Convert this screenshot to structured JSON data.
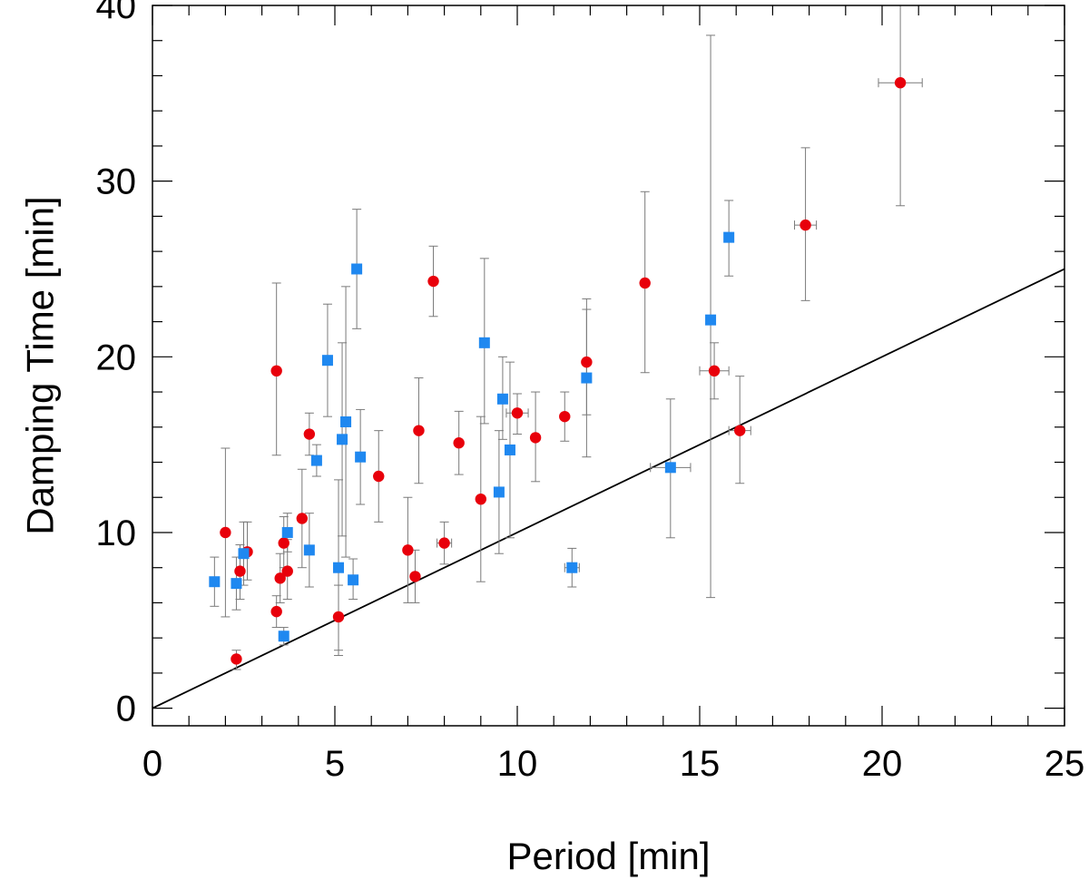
{
  "chart_data": {
    "type": "scatter",
    "title": "",
    "xlabel": "Period [min]",
    "ylabel": "Damping Time [min]",
    "xlim": [
      0,
      25
    ],
    "ylim": [
      -1,
      40
    ],
    "x_ticks": [
      0,
      5,
      10,
      15,
      20,
      25
    ],
    "x_tick_labels": [
      "0",
      "5",
      "10",
      "15",
      "20",
      "25"
    ],
    "y_ticks": [
      0,
      10,
      20,
      30,
      40
    ],
    "y_tick_labels": [
      "0",
      "10",
      "20",
      "30",
      "40"
    ],
    "x_minor_step": 1,
    "y_minor_step": 2,
    "grid": false,
    "reference_line": {
      "name": "y = x",
      "x": [
        0,
        25
      ],
      "y": [
        0,
        25
      ]
    },
    "series": [
      {
        "name": "red circles",
        "marker": "circle",
        "color": "#e8000b",
        "points": [
          {
            "x": 2.0,
            "y": 10.0,
            "ylo": 5.2,
            "yhi": 14.8
          },
          {
            "x": 2.3,
            "y": 2.8,
            "ylo": 2.2,
            "yhi": 3.3
          },
          {
            "x": 2.4,
            "y": 7.8,
            "ylo": 6.2,
            "yhi": 9.3
          },
          {
            "x": 2.6,
            "y": 8.9,
            "ylo": 7.3,
            "yhi": 10.6
          },
          {
            "x": 3.4,
            "y": 19.2,
            "ylo": 14.4,
            "yhi": 24.2
          },
          {
            "x": 3.4,
            "y": 5.5,
            "ylo": 4.6,
            "yhi": 6.4
          },
          {
            "x": 3.5,
            "y": 7.4,
            "ylo": 6.0,
            "yhi": 8.8
          },
          {
            "x": 3.6,
            "y": 9.4,
            "ylo": 8.0,
            "yhi": 10.9
          },
          {
            "x": 3.7,
            "y": 7.8,
            "ylo": 6.2,
            "yhi": 9.6
          },
          {
            "x": 4.1,
            "y": 10.8,
            "ylo": 8.0,
            "yhi": 13.6
          },
          {
            "x": 4.3,
            "y": 15.6,
            "ylo": 14.4,
            "yhi": 16.8
          },
          {
            "x": 5.1,
            "y": 5.2,
            "ylo": 3.3,
            "yhi": 7.0
          },
          {
            "x": 6.2,
            "y": 13.2,
            "ylo": 10.6,
            "yhi": 15.8
          },
          {
            "x": 7.0,
            "y": 9.0,
            "ylo": 6.0,
            "yhi": 12.0
          },
          {
            "x": 7.2,
            "y": 7.5,
            "ylo": 6.0,
            "yhi": 9.0
          },
          {
            "x": 7.3,
            "y": 15.8,
            "ylo": 12.8,
            "yhi": 18.8
          },
          {
            "x": 7.7,
            "y": 24.3,
            "ylo": 22.3,
            "yhi": 26.3
          },
          {
            "x": 8.0,
            "y": 9.4,
            "ylo": 8.2,
            "yhi": 10.6,
            "xerr": 0.2
          },
          {
            "x": 8.4,
            "y": 15.1,
            "ylo": 13.3,
            "yhi": 16.9
          },
          {
            "x": 9.0,
            "y": 11.9,
            "ylo": 7.2,
            "yhi": 16.6
          },
          {
            "x": 10.0,
            "y": 16.8,
            "ylo": 15.6,
            "yhi": 17.9,
            "xerr": 0.3
          },
          {
            "x": 10.5,
            "y": 15.4,
            "ylo": 12.9,
            "yhi": 18.0
          },
          {
            "x": 11.3,
            "y": 16.6,
            "ylo": 15.2,
            "yhi": 18.0
          },
          {
            "x": 11.9,
            "y": 19.7,
            "ylo": 16.7,
            "yhi": 22.7
          },
          {
            "x": 13.5,
            "y": 24.2,
            "ylo": 19.1,
            "yhi": 29.4
          },
          {
            "x": 15.4,
            "y": 19.2,
            "ylo": 17.6,
            "yhi": 20.8,
            "xerr": 0.4
          },
          {
            "x": 16.1,
            "y": 15.8,
            "ylo": 12.8,
            "yhi": 18.9,
            "xerr": 0.3
          },
          {
            "x": 17.9,
            "y": 27.5,
            "ylo": 23.2,
            "yhi": 31.9,
            "xerr": 0.3
          },
          {
            "x": 20.5,
            "y": 35.6,
            "ylo": 28.6,
            "yhi": 41.0,
            "xerr": 0.6
          }
        ]
      },
      {
        "name": "blue squares",
        "marker": "square",
        "color": "#1f88f0",
        "points": [
          {
            "x": 1.7,
            "y": 7.2,
            "ylo": 5.8,
            "yhi": 8.6
          },
          {
            "x": 2.3,
            "y": 7.1,
            "ylo": 5.6,
            "yhi": 8.6
          },
          {
            "x": 2.5,
            "y": 8.8,
            "ylo": 7.0,
            "yhi": 10.6
          },
          {
            "x": 3.6,
            "y": 4.1,
            "ylo": 3.6,
            "yhi": 4.6
          },
          {
            "x": 3.7,
            "y": 10.0,
            "ylo": 8.9,
            "yhi": 11.1
          },
          {
            "x": 4.3,
            "y": 9.0,
            "ylo": 6.9,
            "yhi": 11.1
          },
          {
            "x": 4.5,
            "y": 14.1,
            "ylo": 13.2,
            "yhi": 15.0
          },
          {
            "x": 4.8,
            "y": 19.8,
            "ylo": 16.6,
            "yhi": 23.0
          },
          {
            "x": 5.1,
            "y": 8.0,
            "ylo": 3.0,
            "yhi": 13.0
          },
          {
            "x": 5.2,
            "y": 15.3,
            "ylo": 9.8,
            "yhi": 20.8
          },
          {
            "x": 5.3,
            "y": 16.3,
            "ylo": 8.6,
            "yhi": 24.0
          },
          {
            "x": 5.5,
            "y": 7.3,
            "ylo": 6.2,
            "yhi": 8.5
          },
          {
            "x": 5.6,
            "y": 25.0,
            "ylo": 21.6,
            "yhi": 28.4
          },
          {
            "x": 5.7,
            "y": 14.3,
            "ylo": 11.6,
            "yhi": 17.0
          },
          {
            "x": 9.1,
            "y": 20.8,
            "ylo": 16.2,
            "yhi": 25.6
          },
          {
            "x": 9.5,
            "y": 12.3,
            "ylo": 8.8,
            "yhi": 15.8
          },
          {
            "x": 9.6,
            "y": 17.6,
            "ylo": 15.3,
            "yhi": 20.0
          },
          {
            "x": 9.8,
            "y": 14.7,
            "ylo": 9.7,
            "yhi": 19.7
          },
          {
            "x": 11.5,
            "y": 8.0,
            "ylo": 6.9,
            "yhi": 9.1,
            "xerr": 0.2
          },
          {
            "x": 11.9,
            "y": 18.8,
            "ylo": 14.3,
            "yhi": 23.3
          },
          {
            "x": 14.2,
            "y": 13.7,
            "ylo": 9.7,
            "yhi": 17.6,
            "xerr": 0.55
          },
          {
            "x": 15.3,
            "y": 22.1,
            "ylo": 6.3,
            "yhi": 38.3
          },
          {
            "x": 15.8,
            "y": 26.8,
            "ylo": 24.6,
            "yhi": 28.9
          }
        ]
      }
    ]
  }
}
